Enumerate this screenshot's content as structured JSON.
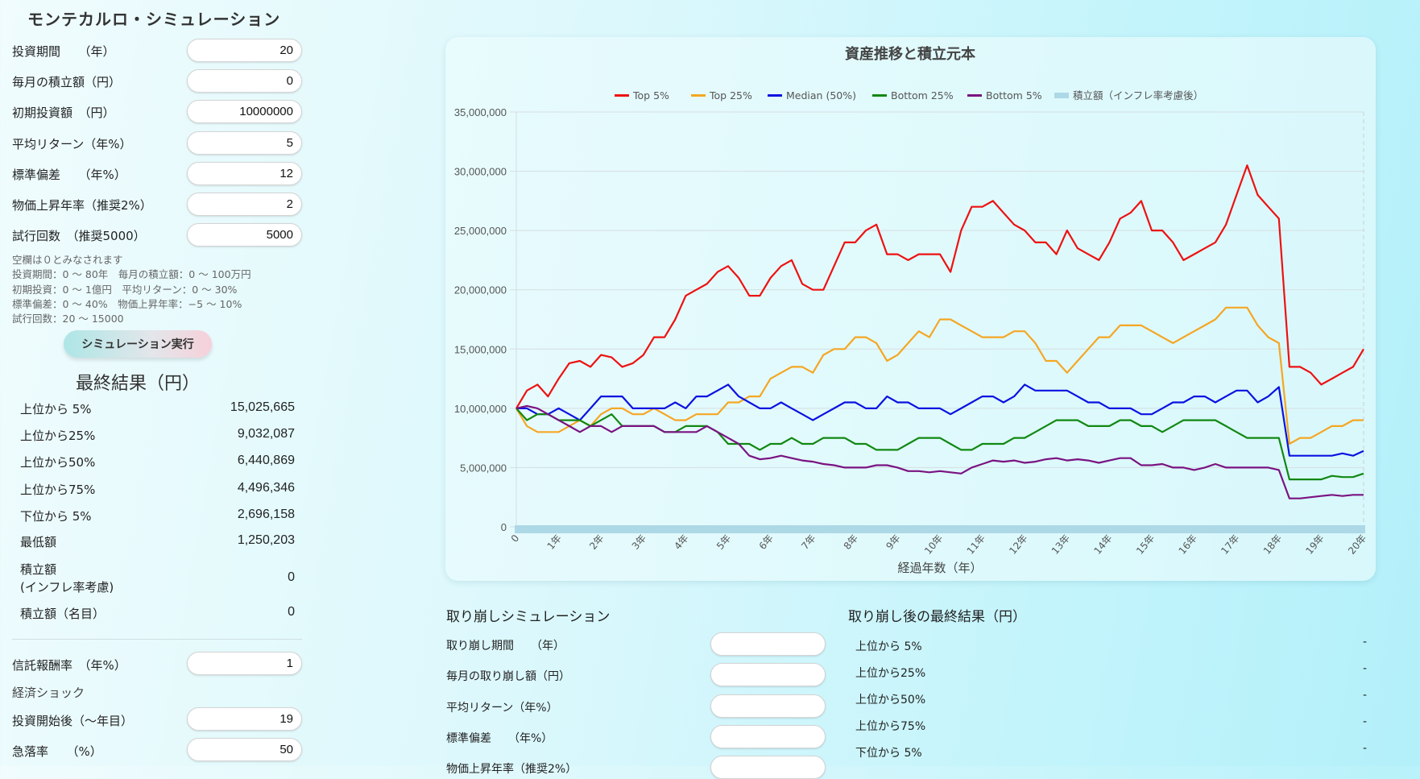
{
  "app": {
    "title": "モンテカルロ・シミュレーション"
  },
  "inputs": [
    {
      "label": "投資期間　　（年）",
      "value": "20"
    },
    {
      "label": "毎月の積立額（円）",
      "value": "0"
    },
    {
      "label": "初期投資額　（円）",
      "value": "10000000"
    },
    {
      "label": "平均リターン（年%）",
      "value": "5"
    },
    {
      "label": "標準偏差　　（年%）",
      "value": "12"
    },
    {
      "label": "物価上昇年率（推奨2%）",
      "value": "2"
    },
    {
      "label": "試行回数　（推奨5000）",
      "value": "5000"
    }
  ],
  "notes": [
    "空欄は０とみなされます",
    "投資期間：0 ～ 80年　毎月の積立額：0 ～ 100万円",
    "初期投資：0 ～ 1億円　平均リターン：0 ～ 30%",
    "標準偏差：0 ～ 40%　物価上昇年率：−5 ～ 10%",
    "試行回数：20 ～ 15000"
  ],
  "run_button": "シミュレーション実行",
  "results": {
    "title": "最終結果（円）",
    "rows": [
      {
        "label": "上位から 5%",
        "value": "15,025,665"
      },
      {
        "label": "上位から25%",
        "value": "9,032,087"
      },
      {
        "label": "上位から50%",
        "value": "6,440,869"
      },
      {
        "label": "上位から75%",
        "value": "4,496,346"
      },
      {
        "label": "下位から 5%",
        "value": "2,696,158"
      },
      {
        "label": "最低額",
        "value": "1,250,203"
      },
      {
        "label": "積立額\n(インフレ率考慮)",
        "value": "0"
      },
      {
        "label": "積立額（名目）",
        "value": "0"
      }
    ]
  },
  "fee": {
    "label": "信託報酬率　（年%）",
    "value": "1"
  },
  "shock": {
    "heading": "経済ショック",
    "start_label": "投資開始後（～年目）",
    "start_value": "19",
    "drop_label": "急落率　　（%）",
    "drop_value": "50"
  },
  "withdraw": {
    "title": "取り崩しシミュレーション",
    "rows": [
      {
        "label": "取り崩し期間　　（年）",
        "value": ""
      },
      {
        "label": "毎月の取り崩し額（円）",
        "value": ""
      },
      {
        "label": "平均リターン（年%）",
        "value": ""
      },
      {
        "label": "標準偏差　　（年%）",
        "value": ""
      },
      {
        "label": "物価上昇年率（推奨2%）",
        "value": ""
      }
    ]
  },
  "withdraw_results": {
    "title": "取り崩し後の最終結果（円）",
    "rows": [
      {
        "label": "上位から 5%",
        "value": "-"
      },
      {
        "label": "上位から25%",
        "value": "-"
      },
      {
        "label": "上位から50%",
        "value": "-"
      },
      {
        "label": "上位から75%",
        "value": "-"
      },
      {
        "label": "下位から 5%",
        "value": "-"
      }
    ]
  },
  "chart_data": {
    "type": "line",
    "title": "資産推移と積立元本",
    "xlabel": "経過年数（年）",
    "ylabel": "",
    "x_step_years": 0.25,
    "xlim": [
      0,
      20
    ],
    "ylim": [
      0,
      35000000
    ],
    "y_unit": 1000000,
    "yticks": [
      "0",
      "5,000,000",
      "10,000,000",
      "15,000,000",
      "20,000,000",
      "25,000,000",
      "30,000,000",
      "35,000,000"
    ],
    "xticks": [
      "0",
      "1年",
      "2年",
      "3年",
      "4年",
      "5年",
      "6年",
      "7年",
      "8年",
      "9年",
      "10年",
      "11年",
      "12年",
      "13年",
      "14年",
      "15年",
      "16年",
      "17年",
      "18年",
      "19年",
      "20年"
    ],
    "legend_position": "top",
    "grid": true,
    "series": [
      {
        "name": "Top 5%",
        "color": "#ee1111",
        "values": [
          10,
          11.5,
          12,
          11,
          12.5,
          13.8,
          14,
          13.5,
          14.5,
          14.3,
          13.5,
          13.8,
          14.5,
          16,
          16,
          17.5,
          19.5,
          20,
          20.5,
          21.5,
          22,
          21,
          19.5,
          19.5,
          21,
          22,
          22.5,
          20.5,
          20,
          20,
          22,
          24,
          24,
          25,
          25.5,
          23,
          23,
          22.5,
          23,
          23,
          23,
          21.5,
          25,
          27,
          27,
          27.5,
          26.5,
          25.5,
          25,
          24,
          24,
          23,
          25,
          23.5,
          23,
          22.5,
          24,
          26,
          26.5,
          27.5,
          25,
          25,
          24,
          22.5,
          23,
          23.5,
          24,
          25.5,
          28,
          30.5,
          28,
          27,
          26,
          13.5,
          13.5,
          13,
          12,
          12.5,
          13,
          13.5,
          15
        ]
      },
      {
        "name": "Top 25%",
        "color": "#f5a623",
        "values": [
          10,
          8.5,
          8,
          8,
          8,
          8.5,
          9,
          8.5,
          9.5,
          10,
          10,
          9.5,
          9.5,
          10,
          9.5,
          9,
          9,
          9.5,
          9.5,
          9.5,
          10.5,
          10.5,
          11,
          11,
          12.5,
          13,
          13.5,
          13.5,
          13,
          14.5,
          15,
          15,
          16,
          16,
          15.5,
          14,
          14.5,
          15.5,
          16.5,
          16,
          17.5,
          17.5,
          17,
          16.5,
          16,
          16,
          16,
          16.5,
          16.5,
          15.5,
          14,
          14,
          13,
          14,
          15,
          16,
          16,
          17,
          17,
          17,
          16.5,
          16,
          15.5,
          16,
          16.5,
          17,
          17.5,
          18.5,
          18.5,
          18.5,
          17,
          16,
          15.5,
          7,
          7.5,
          7.5,
          8,
          8.5,
          8.5,
          9,
          9
        ]
      },
      {
        "name": "Median (50%)",
        "color": "#0a12e0",
        "values": [
          10,
          10,
          9.5,
          9.5,
          10,
          9.5,
          9,
          10,
          11,
          11,
          11,
          10,
          10,
          10,
          10,
          10.5,
          10,
          11,
          11,
          11.5,
          12,
          11,
          10.5,
          10,
          10,
          10.5,
          10,
          9.5,
          9,
          9.5,
          10,
          10.5,
          10.5,
          10,
          10,
          11,
          10.5,
          10.5,
          10,
          10,
          10,
          9.5,
          10,
          10.5,
          11,
          11,
          10.5,
          11,
          12,
          11.5,
          11.5,
          11.5,
          11.5,
          11,
          10.5,
          10.5,
          10,
          10,
          10,
          9.5,
          9.5,
          10,
          10.5,
          10.5,
          11,
          11,
          10.5,
          11,
          11.5,
          11.5,
          10.5,
          11,
          11.8,
          6,
          6,
          6,
          6,
          6,
          6.2,
          6,
          6.4
        ]
      },
      {
        "name": "Bottom 25%",
        "color": "#118811",
        "values": [
          10,
          9,
          9.5,
          9.5,
          9,
          9,
          9,
          8.5,
          9,
          9.5,
          8.5,
          8.5,
          8.5,
          8.5,
          8,
          8,
          8.5,
          8.5,
          8.5,
          8,
          7,
          7,
          7,
          6.5,
          7,
          7,
          7.5,
          7,
          7,
          7.5,
          7.5,
          7.5,
          7,
          7,
          6.5,
          6.5,
          6.5,
          7,
          7.5,
          7.5,
          7.5,
          7,
          6.5,
          6.5,
          7,
          7,
          7,
          7.5,
          7.5,
          8,
          8.5,
          9,
          9,
          9,
          8.5,
          8.5,
          8.5,
          9,
          9,
          8.5,
          8.5,
          8,
          8.5,
          9,
          9,
          9,
          9,
          8.5,
          8,
          7.5,
          7.5,
          7.5,
          7.5,
          4,
          4,
          4,
          4,
          4.3,
          4.2,
          4.2,
          4.5
        ]
      },
      {
        "name": "Bottom 5%",
        "color": "#7a1380",
        "values": [
          10,
          10.2,
          10,
          9.5,
          9,
          8.5,
          8,
          8.5,
          8.5,
          8,
          8.5,
          8.5,
          8.5,
          8.5,
          8,
          8,
          8,
          8,
          8.5,
          8,
          7.5,
          7,
          6,
          5.7,
          5.8,
          6,
          5.8,
          5.6,
          5.5,
          5.3,
          5.2,
          5,
          5,
          5,
          5.2,
          5.2,
          5,
          4.7,
          4.7,
          4.6,
          4.7,
          4.6,
          4.5,
          5,
          5.3,
          5.6,
          5.5,
          5.6,
          5.4,
          5.5,
          5.7,
          5.8,
          5.6,
          5.7,
          5.6,
          5.4,
          5.6,
          5.8,
          5.8,
          5.2,
          5.2,
          5.3,
          5,
          5,
          4.8,
          5,
          5.3,
          5,
          5,
          5,
          5,
          5,
          4.8,
          2.4,
          2.4,
          2.5,
          2.6,
          2.7,
          2.6,
          2.7,
          2.7
        ]
      },
      {
        "name": "積立額（インフレ率考慮後）",
        "color": "#add8e6",
        "fill": true,
        "values": [
          0,
          0,
          0,
          0,
          0,
          0,
          0,
          0,
          0,
          0,
          0,
          0,
          0,
          0,
          0,
          0,
          0,
          0,
          0,
          0,
          0,
          0,
          0,
          0,
          0,
          0,
          0,
          0,
          0,
          0,
          0,
          0,
          0,
          0,
          0,
          0,
          0,
          0,
          0,
          0,
          0,
          0,
          0,
          0,
          0,
          0,
          0,
          0,
          0,
          0,
          0,
          0,
          0,
          0,
          0,
          0,
          0,
          0,
          0,
          0,
          0,
          0,
          0,
          0,
          0,
          0,
          0,
          0,
          0,
          0,
          0,
          0,
          0,
          0,
          0,
          0,
          0,
          0,
          0,
          0,
          0
        ]
      }
    ]
  }
}
